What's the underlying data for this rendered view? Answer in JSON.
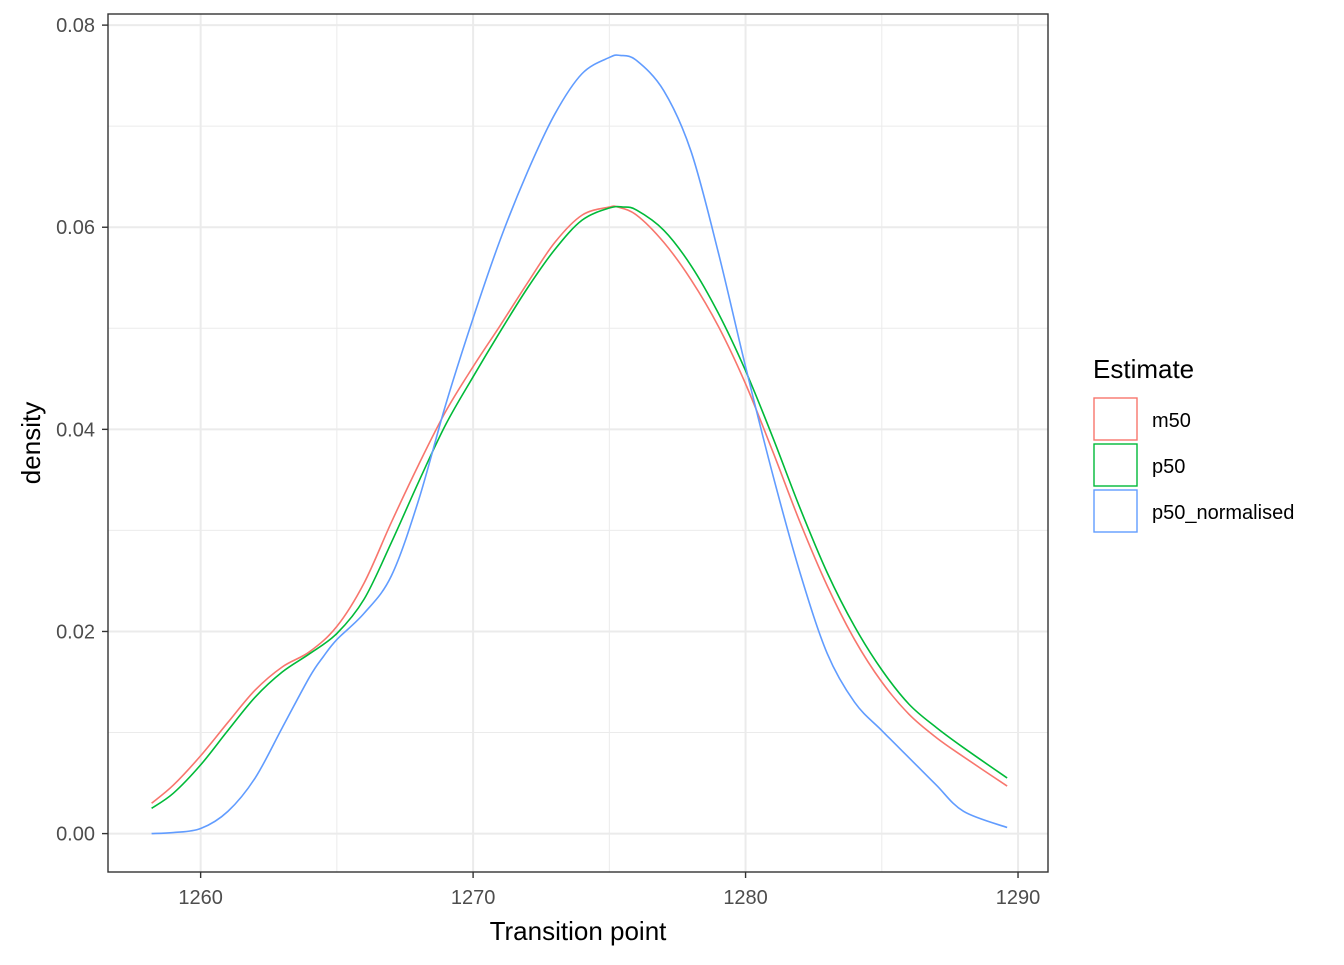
{
  "chart_data": {
    "type": "line",
    "title": "",
    "xlabel": "Transition point",
    "ylabel": "density",
    "xlim": [
      1256.6,
      1291.1
    ],
    "ylim": [
      -0.0038,
      0.0811
    ],
    "x_ticks": [
      1260,
      1270,
      1280,
      1290
    ],
    "x_tick_labels": [
      "1260",
      "1270",
      "1280",
      "1290"
    ],
    "x_minor_ticks": [
      1265,
      1275,
      1285
    ],
    "y_ticks": [
      0.0,
      0.02,
      0.04,
      0.06,
      0.08
    ],
    "y_tick_labels": [
      "0.00",
      "0.02",
      "0.04",
      "0.06",
      "0.08"
    ],
    "y_minor_ticks": [
      0.01,
      0.03,
      0.05,
      0.07
    ],
    "grid": true,
    "legend": {
      "title": "Estimate",
      "position": "right"
    },
    "series": [
      {
        "name": "m50",
        "color": "#F8766D",
        "x": [
          1258.2,
          1259.0,
          1260.0,
          1261.0,
          1262.0,
          1263.0,
          1264.0,
          1265.0,
          1266.0,
          1267.0,
          1268.0,
          1269.0,
          1270.0,
          1271.0,
          1272.0,
          1273.0,
          1274.0,
          1275.0,
          1275.3,
          1276.0,
          1277.0,
          1278.0,
          1279.0,
          1280.0,
          1281.0,
          1282.0,
          1283.0,
          1284.0,
          1285.0,
          1286.0,
          1287.0,
          1288.0,
          1289.6
        ],
        "y": [
          0.003,
          0.0048,
          0.0077,
          0.011,
          0.0142,
          0.0165,
          0.018,
          0.0205,
          0.0248,
          0.0308,
          0.0365,
          0.0418,
          0.0462,
          0.0503,
          0.0545,
          0.0585,
          0.0612,
          0.062,
          0.062,
          0.0612,
          0.0585,
          0.0548,
          0.0502,
          0.0445,
          0.0378,
          0.0308,
          0.0245,
          0.0192,
          0.015,
          0.0118,
          0.0095,
          0.0076,
          0.0047
        ]
      },
      {
        "name": "p50",
        "color": "#00BA38",
        "x": [
          1258.2,
          1259.0,
          1260.0,
          1261.0,
          1262.0,
          1263.0,
          1264.0,
          1265.0,
          1266.0,
          1267.0,
          1268.0,
          1269.0,
          1270.0,
          1271.0,
          1272.0,
          1273.0,
          1274.0,
          1275.0,
          1275.5,
          1276.0,
          1277.0,
          1278.0,
          1279.0,
          1280.0,
          1281.0,
          1282.0,
          1283.0,
          1284.0,
          1285.0,
          1286.0,
          1287.0,
          1288.0,
          1289.6
        ],
        "y": [
          0.0025,
          0.004,
          0.0068,
          0.0102,
          0.0135,
          0.016,
          0.0178,
          0.0198,
          0.0232,
          0.0288,
          0.0348,
          0.0405,
          0.0452,
          0.0497,
          0.054,
          0.0578,
          0.0607,
          0.0619,
          0.062,
          0.0617,
          0.0597,
          0.0562,
          0.0515,
          0.0458,
          0.0392,
          0.0322,
          0.0258,
          0.0205,
          0.0162,
          0.0128,
          0.0105,
          0.0085,
          0.0055
        ]
      },
      {
        "name": "p50_normalised",
        "color": "#619CFF",
        "x": [
          1258.2,
          1259.0,
          1260.0,
          1261.0,
          1262.0,
          1263.0,
          1264.0,
          1264.5,
          1265.0,
          1266.0,
          1267.0,
          1268.0,
          1269.0,
          1270.0,
          1271.0,
          1272.0,
          1273.0,
          1274.0,
          1275.0,
          1275.4,
          1276.0,
          1277.0,
          1278.0,
          1279.0,
          1280.0,
          1281.0,
          1282.0,
          1283.0,
          1284.0,
          1285.0,
          1286.0,
          1287.0,
          1288.0,
          1289.6
        ],
        "y": [
          0.0,
          0.0001,
          0.0005,
          0.0022,
          0.0055,
          0.0105,
          0.0155,
          0.0175,
          0.0192,
          0.0218,
          0.0255,
          0.033,
          0.0425,
          0.051,
          0.0588,
          0.0655,
          0.0712,
          0.0752,
          0.0768,
          0.077,
          0.0765,
          0.0735,
          0.0675,
          0.0575,
          0.0462,
          0.0355,
          0.0258,
          0.0178,
          0.013,
          0.0102,
          0.0075,
          0.0048,
          0.0022,
          0.0006
        ]
      }
    ]
  }
}
